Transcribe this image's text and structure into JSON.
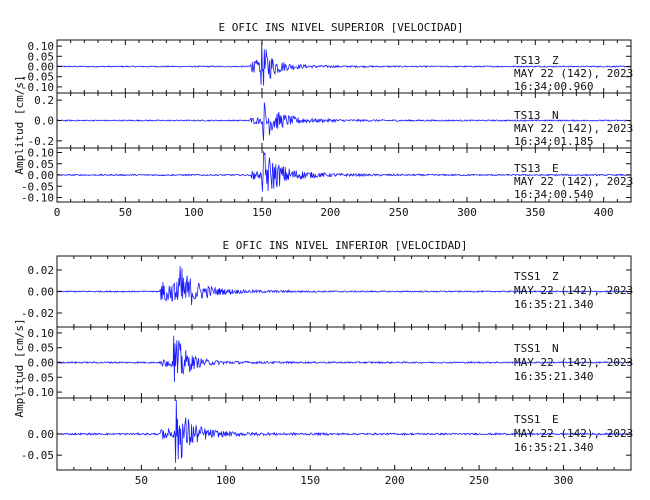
{
  "chart_data": [
    {
      "type": "line",
      "title": "E OFIC INS NIVEL SUPERIOR [VELOCIDAD]",
      "ylabel": "Amplitud [cm/s]",
      "xlabel": "",
      "xlim": [
        0,
        420
      ],
      "x_ticks": [
        0,
        50,
        100,
        150,
        200,
        250,
        300,
        350,
        400
      ],
      "x_tick_labels": [
        "0",
        "50",
        "100",
        "150",
        "200",
        "250",
        "300",
        "350",
        "400"
      ],
      "grid": false,
      "color": "#1a1aff",
      "panels": [
        {
          "station": "TS13",
          "component": "Z",
          "date": "MAY 22 (142), 2023",
          "time": "16:34:00.960",
          "ylim": [
            -0.13,
            0.13
          ],
          "y_ticks": [
            0.1,
            0.05,
            0.0,
            -0.05,
            -0.1
          ],
          "y_tick_labels": [
            "0.10",
            "0.05",
            "0.00",
            "-0.05",
            "-0.10"
          ],
          "trace": {
            "noise": 0.003,
            "onset": 141,
            "onset_amp": 0.035,
            "peak_t": 149,
            "peak_amp": 0.12,
            "decay": 8,
            "tail_amp": 0.012,
            "tail_decay": 30
          }
        },
        {
          "station": "TS13",
          "component": "N",
          "date": "MAY 22 (142), 2023",
          "time": "16:34:01.185",
          "ylim": [
            -0.27,
            0.27
          ],
          "y_ticks": [
            0.2,
            0.0,
            -0.2
          ],
          "y_tick_labels": [
            "0.2",
            "0.0",
            "-0.2"
          ],
          "trace": {
            "noise": 0.006,
            "onset": 141,
            "onset_amp": 0.03,
            "peak_t": 150,
            "peak_amp": 0.2,
            "decay": 10,
            "tail_amp": 0.03,
            "tail_decay": 35
          }
        },
        {
          "station": "TS13",
          "component": "E",
          "date": "MAY 22 (142), 2023",
          "time": "16:34:00.540",
          "ylim": [
            -0.12,
            0.12
          ],
          "y_ticks": [
            0.1,
            0.05,
            0.0,
            -0.05,
            -0.1
          ],
          "y_tick_labels": [
            "0.10",
            "0.05",
            "0.00",
            "-0.05",
            "-0.10"
          ],
          "trace": {
            "noise": 0.003,
            "onset": 141,
            "onset_amp": 0.02,
            "peak_t": 150,
            "peak_amp": 0.11,
            "decay": 12,
            "tail_amp": 0.015,
            "tail_decay": 35
          }
        }
      ]
    },
    {
      "type": "line",
      "title": "E OFIC INS NIVEL INFERIOR [VELOCIDAD]",
      "ylabel": "Amplitud [cm/s]",
      "xlabel": "",
      "xlim": [
        0,
        340
      ],
      "x_ticks": [
        50,
        100,
        150,
        200,
        250,
        300
      ],
      "x_tick_labels": [
        "50",
        "100",
        "150",
        "200",
        "250",
        "300"
      ],
      "grid": false,
      "color": "#1a1aff",
      "panels": [
        {
          "station": "TSS1",
          "component": "Z",
          "date": "MAY 22 (142), 2023",
          "time": "16:35:21.340",
          "ylim": [
            -0.033,
            0.033
          ],
          "y_ticks": [
            0.02,
            0.0,
            -0.02
          ],
          "y_tick_labels": [
            "0.02",
            "0.00",
            "-0.02"
          ],
          "trace": {
            "noise": 0.0006,
            "onset": 61,
            "onset_amp": 0.012,
            "peak_t": 70,
            "peak_amp": 0.03,
            "decay": 9,
            "tail_amp": 0.003,
            "tail_decay": 30
          }
        },
        {
          "station": "TSS1",
          "component": "N",
          "date": "MAY 22 (142), 2023",
          "time": "16:35:21.340",
          "ylim": [
            -0.12,
            0.12
          ],
          "y_ticks": [
            0.1,
            0.05,
            0.0,
            -0.05,
            -0.1
          ],
          "y_tick_labels": [
            "0.10",
            "0.05",
            "0.00",
            "-0.05",
            "-0.10"
          ],
          "trace": {
            "noise": 0.0025,
            "onset": 61,
            "onset_amp": 0.015,
            "peak_t": 69,
            "peak_amp": 0.11,
            "decay": 6,
            "tail_amp": 0.01,
            "tail_decay": 25
          }
        },
        {
          "station": "TSS1",
          "component": "E",
          "date": "MAY 22 (142), 2023",
          "time": "16:35:21.340",
          "ylim": [
            -0.085,
            0.085
          ],
          "y_ticks": [
            0.0,
            -0.05
          ],
          "y_tick_labels": [
            "0.00",
            "-0.05"
          ],
          "trace": {
            "noise": 0.002,
            "onset": 61,
            "onset_amp": 0.012,
            "peak_t": 70,
            "peak_amp": 0.08,
            "decay": 8,
            "tail_amp": 0.008,
            "tail_decay": 28
          }
        }
      ]
    }
  ]
}
